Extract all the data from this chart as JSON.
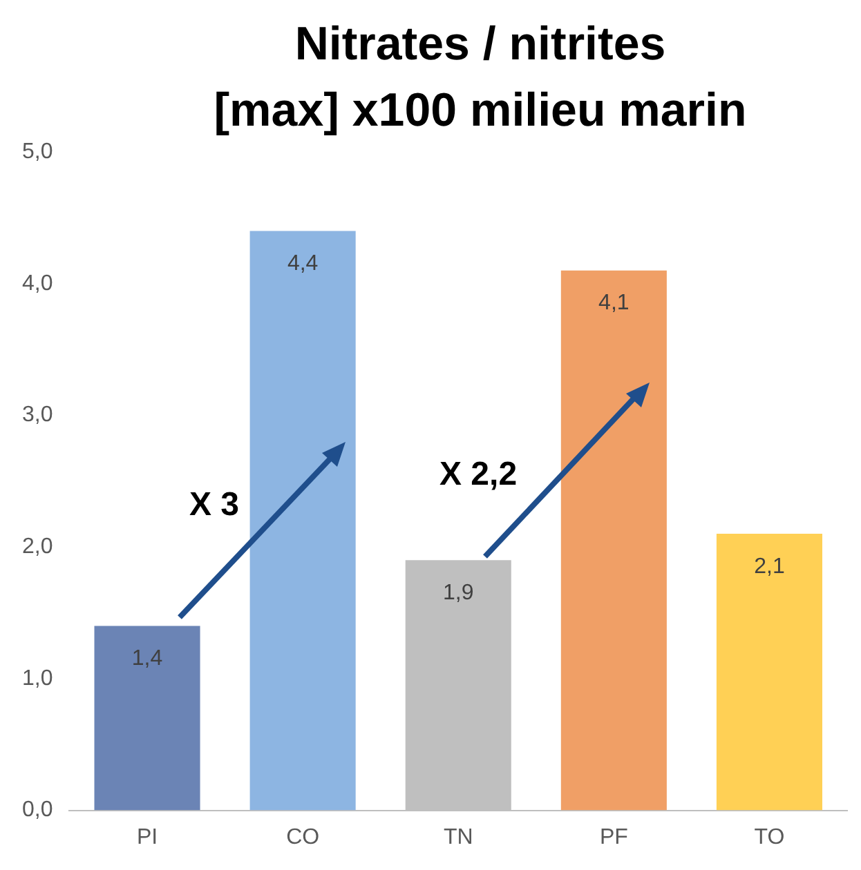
{
  "chart_data": {
    "type": "bar",
    "title": "Nitrates / nitrites\n[max] x100  milieu marin",
    "categories": [
      "PI",
      "CO",
      "TN",
      "PF",
      "TO"
    ],
    "values": [
      1.4,
      4.4,
      1.9,
      4.1,
      2.1
    ],
    "colors": [
      "#6b84b5",
      "#8db5e2",
      "#bfbfbf",
      "#f09f66",
      "#ffd055"
    ],
    "value_labels": [
      "1,4",
      "4,4",
      "1,9",
      "4,1",
      "2,1"
    ],
    "ylim": [
      0,
      5
    ],
    "yticks": [
      {
        "value": 0,
        "label": "0,0"
      },
      {
        "value": 1,
        "label": "1,0"
      },
      {
        "value": 2,
        "label": "2,0"
      },
      {
        "value": 3,
        "label": "3,0"
      },
      {
        "value": 4,
        "label": "4,0"
      },
      {
        "value": 5,
        "label": "5,0"
      }
    ],
    "grid": false,
    "legend": false,
    "annotations": [
      "X 3",
      "X 2,2"
    ]
  }
}
